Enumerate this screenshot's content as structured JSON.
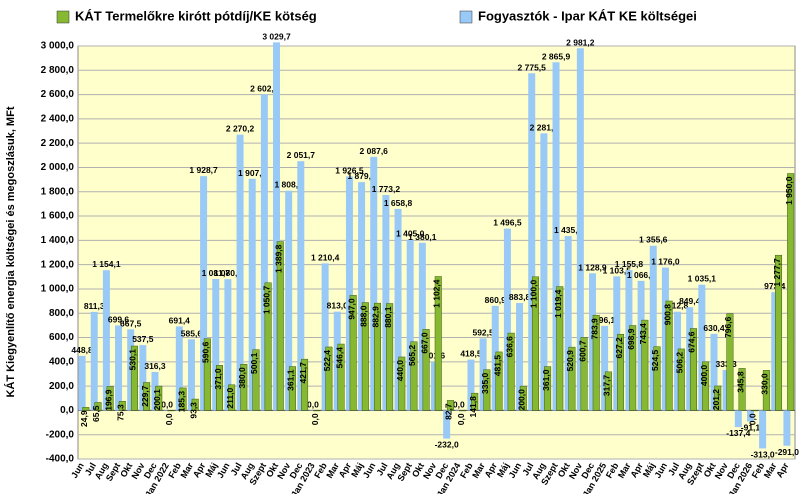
{
  "chart_data": {
    "type": "bar",
    "y_label": "KÁT Kiegyenlítő energia költségei és megoszlásuk, MFt",
    "categories": [
      "Jun",
      "Jul",
      "Aug",
      "Sept",
      "Okt",
      "Nov",
      "Dec",
      "Jan 2022",
      "Feb",
      "Mar",
      "Apr",
      "Máj",
      "Jun",
      "Jul",
      "Aug",
      "Szept",
      "Okt",
      "Nov",
      "Dec",
      "Jan 2023",
      "Feb",
      "Mar",
      "Apr",
      "Máj",
      "Jun",
      "Jul",
      "Aug",
      "Sept",
      "Okt",
      "Nov",
      "Dec",
      "Jan 2024",
      "Feb",
      "Mar",
      "Apr",
      "Máj",
      "Jun",
      "Jul",
      "Aug",
      "Szept",
      "Okt",
      "Nov",
      "Dec",
      "Jan 2025",
      "Feb",
      "Mar",
      "Apr",
      "Máj",
      "Jun",
      "Jul",
      "Aug",
      "Szept",
      "Okt",
      "Nov",
      "Dec",
      "Jan 2026",
      "Feb",
      "Mar",
      "Apr"
    ],
    "series": [
      {
        "name": "Fogyasztók - Ipar KÁT KE költségei",
        "color": "#99c9f7",
        "values": [
          448.8,
          811.3,
          1154.1,
          699.6,
          667.5,
          537.5,
          316.3,
          0.0,
          691.4,
          585.6,
          1928.7,
          1081.7,
          1080.7,
          2270.2,
          1907.1,
          2602.2,
          3029.7,
          1808.7,
          2051.7,
          0.0,
          1210.4,
          813.0,
          1926.5,
          1879.3,
          2087.6,
          1773.2,
          1658.8,
          1405.0,
          1380.1,
          401.6,
          -232.0,
          0.0,
          418.5,
          592.5,
          860.9,
          1496.5,
          883.8,
          2775.5,
          2281.0,
          2865.9,
          1435.1,
          2981.2,
          1128.9,
          696.1,
          1103.5,
          1155.8,
          1066.6,
          1355.6,
          1176.0,
          812.8,
          849.4,
          1035.1,
          630.4,
          333.3,
          -137.4,
          -91.1,
          -313.0,
          973.4,
          -291.0
        ],
        "value_labels": [
          "448,8",
          "811,3",
          "1 154,1",
          "699,6",
          "667,5",
          "537,5",
          "316,3",
          "0,0",
          "691,4",
          "585,6",
          "1 928,7",
          "1 081,7",
          "1 080,7",
          "2 270,2",
          "1 907,1",
          "2 602,2",
          "3 029,7",
          "1 808,7",
          "2 051,7",
          "0,0",
          "1 210,4",
          "813,0",
          "1 926,5",
          "1 879,3",
          "2 087,6",
          "1 773,2",
          "1 658,8",
          "1 405,0",
          "1 380,1",
          "401,6",
          "-232,0",
          "0,0",
          "418,5",
          "592,5",
          "860,9",
          "1 496,5",
          "883,8",
          "2 775,5",
          "2 281,0",
          "2 865,9",
          "1 435,1",
          "2 981,2",
          "1 128,9",
          "696,1",
          "1 103,5",
          "1 155,8",
          "1 066,6",
          "1 355,6",
          "1 176,0",
          "812,8",
          "849,4",
          "1 035,1",
          "630,4",
          "333,3",
          "-137,4",
          "-91,1",
          "-313,0",
          "973,4",
          "-291,0"
        ]
      },
      {
        "name": "KÁT Termelőkre kirótt pótdíj/KE kötség",
        "color": "#86b832",
        "values": [
          24.9,
          65.5,
          196.9,
          75.3,
          530.1,
          229.7,
          200.1,
          0.0,
          185.3,
          93.3,
          590.6,
          371.0,
          211.0,
          380.0,
          500.1,
          1050.7,
          1389.8,
          361.1,
          421.7,
          0.0,
          522.4,
          546.4,
          947.0,
          888.0,
          882.9,
          880.1,
          440.0,
          565.2,
          667.0,
          1102.4,
          82.7,
          0.0,
          141.8,
          335.0,
          481.5,
          636.6,
          200.0,
          1100.0,
          361.0,
          1019.4,
          520.9,
          600.7,
          783.9,
          317.7,
          627.2,
          698.9,
          743.4,
          524.5,
          900.8,
          506.2,
          674.6,
          400.0,
          201.2,
          796.6,
          345.8,
          0.0,
          330.0,
          1277.7,
          1950.0
        ],
        "value_labels": [
          "24,9",
          "65,5",
          "196,9",
          "75,3",
          "530,1",
          "229,7",
          "200,1",
          "0,0",
          "185,3",
          "93,3",
          "590,6",
          "371,0",
          "211,0",
          "380,0",
          "500,1",
          "1 050,7",
          "1 389,8",
          "361,1",
          "421,7",
          "0,0",
          "522,4",
          "546,4",
          "947,0",
          "888,0",
          "882,9",
          "880,1",
          "440,0",
          "565,2",
          "667,0",
          "1 102,4",
          "82,7",
          "0,0",
          "141,8",
          "335,0",
          "481,5",
          "636,6",
          "200,0",
          "1 100,0",
          "361,0",
          "1 019,4",
          "520,9",
          "600,7",
          "783,9",
          "317,7",
          "627,2",
          "698,9",
          "743,4",
          "524,5",
          "900,8",
          "506,2",
          "674,6",
          "400,0",
          "201,2",
          "796,6",
          "345,8",
          "0,0",
          "330,0",
          "1 277,7",
          "1 950,0"
        ]
      }
    ],
    "ylim": [
      -400,
      3000
    ],
    "yticks": [
      {
        "value": -400,
        "label": "-400,0"
      },
      {
        "value": -200,
        "label": "-200,0"
      },
      {
        "value": 0,
        "label": "0,0"
      },
      {
        "value": 200,
        "label": "200,0"
      },
      {
        "value": 400,
        "label": "400,0"
      },
      {
        "value": 600,
        "label": "600,0"
      },
      {
        "value": 800,
        "label": "800,0"
      },
      {
        "value": 1000,
        "label": "1 000,0"
      },
      {
        "value": 1200,
        "label": "1 200,0"
      },
      {
        "value": 1400,
        "label": "1 400,0"
      },
      {
        "value": 1600,
        "label": "1 600,0"
      },
      {
        "value": 1800,
        "label": "1 800,0"
      },
      {
        "value": 2000,
        "label": "2 000,0"
      },
      {
        "value": 2200,
        "label": "2 200,0"
      },
      {
        "value": 2400,
        "label": "2 400,0"
      },
      {
        "value": 2600,
        "label": "2 600,0"
      },
      {
        "value": 2800,
        "label": "2 800,0"
      },
      {
        "value": 3000,
        "label": "3 000,0"
      }
    ],
    "grid": true
  }
}
